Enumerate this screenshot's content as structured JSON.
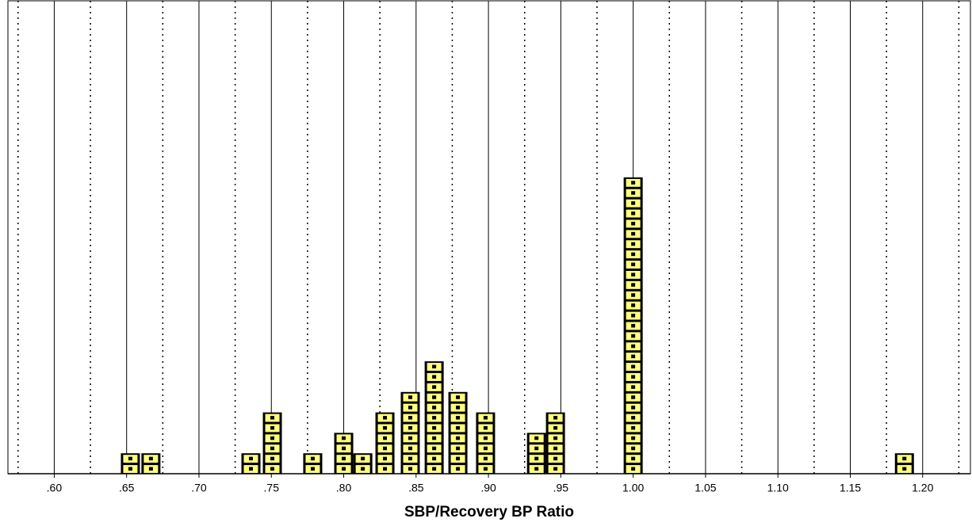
{
  "chart_data": {
    "type": "dotplot",
    "x_label": "SBP/Recovery BP Ratio",
    "x": [
      0.6526,
      0.6668,
      0.7359,
      0.7507,
      0.7786,
      0.8,
      0.8132,
      0.8285,
      0.846,
      0.8625,
      0.8789,
      0.898,
      0.9332,
      0.9463,
      1.0,
      1.1874
    ],
    "values": [
      2,
      2,
      2,
      6,
      2,
      4,
      2,
      6,
      8,
      11,
      8,
      6,
      4,
      6,
      29,
      2
    ],
    "color": "#ffff80",
    "xlim": [
      0.568,
      1.233
    ],
    "xticks": [
      {
        "value": 0.6,
        "label": ".60"
      },
      {
        "value": 0.65,
        "label": ".65"
      },
      {
        "value": 0.7,
        "label": ".70"
      },
      {
        "value": 0.75,
        "label": ".75"
      },
      {
        "value": 0.8,
        "label": ".80"
      },
      {
        "value": 0.85,
        "label": ".85"
      },
      {
        "value": 0.9,
        "label": ".90"
      },
      {
        "value": 0.95,
        "label": ".95"
      },
      {
        "value": 1.0,
        "label": "1.00"
      },
      {
        "value": 1.05,
        "label": "1.05"
      },
      {
        "value": 1.1,
        "label": "1.10"
      },
      {
        "value": 1.15,
        "label": "1.15"
      },
      {
        "value": 1.2,
        "label": "1.20"
      }
    ],
    "minor_gridlines": [
      0.575,
      0.625,
      0.675,
      0.725,
      0.775,
      0.825,
      0.875,
      0.925,
      0.975,
      1.025,
      1.075,
      1.125,
      1.175,
      1.225
    ],
    "grid": true
  }
}
